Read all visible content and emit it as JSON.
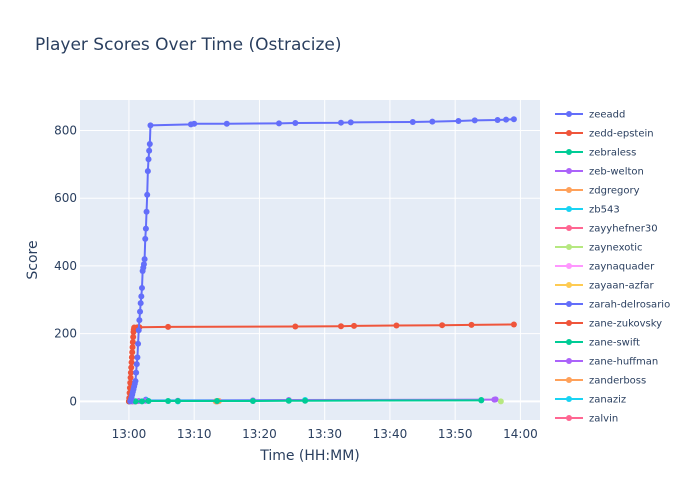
{
  "chart_data": {
    "type": "line",
    "title": "Player Scores Over Time (Ostracize)",
    "xlabel": "Time (HH:MM)",
    "ylabel": "Score",
    "x_unit": "minutes after 13:00",
    "xlim": [
      -7.5,
      63
    ],
    "ylim": [
      -55,
      890
    ],
    "x_ticks": [
      {
        "value": 0,
        "label": "13:00"
      },
      {
        "value": 10,
        "label": "13:10"
      },
      {
        "value": 20,
        "label": "13:20"
      },
      {
        "value": 30,
        "label": "13:30"
      },
      {
        "value": 40,
        "label": "13:40"
      },
      {
        "value": 50,
        "label": "13:50"
      },
      {
        "value": 60,
        "label": "14:00"
      }
    ],
    "y_ticks": [
      {
        "value": 0,
        "label": "0"
      },
      {
        "value": 200,
        "label": "200"
      },
      {
        "value": 400,
        "label": "400"
      },
      {
        "value": 600,
        "label": "600"
      },
      {
        "value": 800,
        "label": "800"
      }
    ],
    "grid": true,
    "legend_position": "right",
    "series": [
      {
        "name": "zeeadd",
        "color": "#636efa",
        "x": [
          0.2,
          0.3,
          0.4,
          0.5,
          0.6,
          0.7,
          0.8,
          0.9,
          1.0,
          1.1,
          1.2,
          1.3,
          1.4,
          1.5,
          1.6,
          1.7,
          1.8,
          1.9,
          2.0,
          2.1,
          2.2,
          2.3,
          2.4,
          2.5,
          2.6,
          2.7,
          2.8,
          2.9,
          3.0,
          3.1,
          3.2,
          3.3,
          9.5,
          10.0,
          15.0,
          23.0,
          25.5,
          32.5,
          34.0,
          43.5,
          46.5,
          50.5,
          53.0,
          56.5,
          57.8,
          59.0
        ],
        "y": [
          0,
          5,
          12,
          20,
          28,
          36,
          44,
          52,
          60,
          85,
          110,
          130,
          170,
          210,
          240,
          265,
          290,
          310,
          335,
          385,
          395,
          405,
          420,
          480,
          510,
          560,
          610,
          680,
          715,
          740,
          760,
          815,
          818,
          820,
          820,
          821,
          822,
          823,
          824,
          825,
          826,
          828,
          830,
          831,
          832,
          833
        ]
      },
      {
        "name": "zedd-epstein",
        "color": "#ef553b",
        "x": [
          0.0,
          0.05,
          0.1,
          0.15,
          0.2,
          0.25,
          0.3,
          0.35,
          0.4,
          0.45,
          0.5,
          0.55,
          0.6,
          0.65,
          0.7,
          0.75,
          0.8,
          1.2,
          1.4,
          1.6,
          6.0,
          25.5,
          32.5,
          34.5,
          41.0,
          48.0,
          52.5,
          59.0
        ],
        "y": [
          0,
          10,
          25,
          40,
          55,
          70,
          85,
          100,
          115,
          130,
          145,
          160,
          175,
          190,
          205,
          212,
          218,
          218,
          219,
          219,
          220,
          221,
          222,
          223,
          224,
          225,
          226,
          227
        ]
      },
      {
        "name": "zebraless",
        "color": "#00cc96",
        "x": [
          0.0,
          1.0,
          2.0,
          3.0,
          6.0,
          7.5,
          13.5,
          19.0,
          24.5,
          27.0,
          54.0
        ],
        "y": [
          0,
          0,
          0,
          1,
          1,
          1,
          1,
          1,
          2,
          2,
          3
        ]
      },
      {
        "name": "zeb-welton",
        "color": "#ab63fa",
        "x": [
          0.0,
          0.6,
          1.5,
          2.5,
          7.5,
          19.0,
          24.5,
          56.0
        ],
        "y": [
          0,
          0,
          1,
          2,
          2,
          3,
          4,
          5
        ]
      },
      {
        "name": "zdgregory",
        "color": "#ffa15a",
        "x": [
          13.3,
          13.8
        ],
        "y": [
          0,
          1
        ]
      },
      {
        "name": "zb543",
        "color": "#19d3f3",
        "x": [
          2.7,
          27.0
        ],
        "y": [
          3,
          4
        ]
      },
      {
        "name": "zayyhefner30",
        "color": "#ff6692",
        "x": [
          13.5
        ],
        "y": [
          0
        ]
      },
      {
        "name": "zaynexotic",
        "color": "#b6e880",
        "x": [
          57.0
        ],
        "y": [
          0
        ]
      },
      {
        "name": "zaynaquader",
        "color": "#ff97ff",
        "x": [
          0.0
        ],
        "y": [
          0
        ]
      },
      {
        "name": "zayaan-azfar",
        "color": "#fecb52",
        "x": [
          13.6
        ],
        "y": [
          0
        ]
      },
      {
        "name": "zarah-delrosario",
        "color": "#636efa",
        "x": [
          0.9,
          2.6
        ],
        "y": [
          0,
          5
        ]
      },
      {
        "name": "zane-zukovsky",
        "color": "#ef553b",
        "x": [
          0.5,
          1.0
        ],
        "y": [
          0,
          0
        ]
      },
      {
        "name": "zane-swift",
        "color": "#00cc96",
        "x": [
          54.0
        ],
        "y": [
          4
        ]
      },
      {
        "name": "zane-huffman",
        "color": "#ab63fa",
        "x": [
          56.2
        ],
        "y": [
          6
        ]
      },
      {
        "name": "zanderboss",
        "color": "#ffa15a",
        "x": [
          1.1
        ],
        "y": [
          0
        ]
      },
      {
        "name": "zanaziz",
        "color": "#19d3f3",
        "x": [
          7.5
        ],
        "y": [
          0
        ]
      },
      {
        "name": "zalvin",
        "color": "#ff6692",
        "x": [
          13.4
        ],
        "y": [
          0
        ]
      }
    ]
  }
}
